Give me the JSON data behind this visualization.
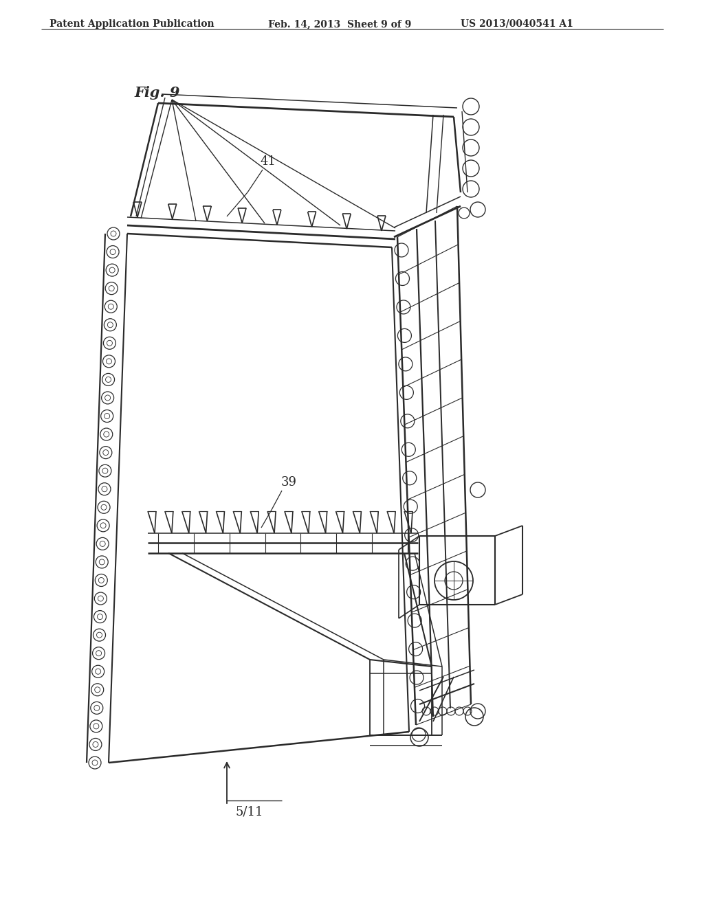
{
  "background_color": "#ffffff",
  "line_color": "#2a2a2a",
  "header_left": "Patent Application Publication",
  "header_mid": "Feb. 14, 2013  Sheet 9 of 9",
  "header_right": "US 2013/0040541 A1",
  "fig_label": "Fig. 9",
  "label_41": "41",
  "label_39": "39",
  "label_511": "5/11",
  "header_fontsize": 10,
  "fig_label_fontsize": 15,
  "annotation_fontsize": 13
}
